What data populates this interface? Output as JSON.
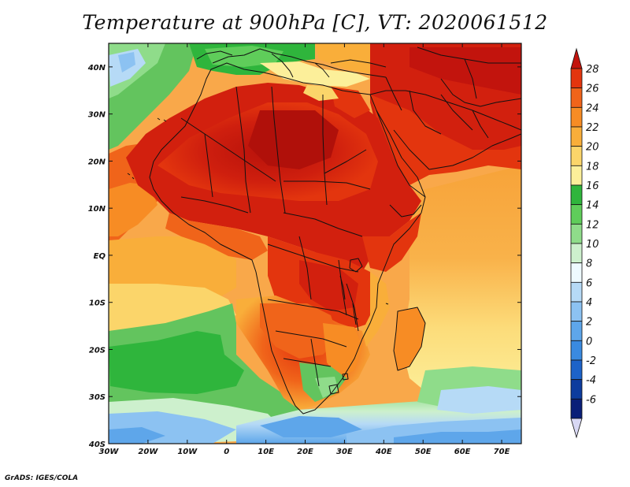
{
  "map": {
    "title": "Temperature at 900hPa [C], VT: 2020061512",
    "credit": "GrADS: IGES/COLA",
    "lon_ticks": [
      "30W",
      "20W",
      "10W",
      "0",
      "10E",
      "20E",
      "30E",
      "40E",
      "50E",
      "60E",
      "70E"
    ],
    "lat_ticks": [
      "40N",
      "30N",
      "20N",
      "10N",
      "EQ",
      "10S",
      "20S",
      "30S",
      "40S"
    ],
    "lon_range_deg": [
      -30,
      75
    ],
    "lat_range_deg": [
      -40,
      45
    ]
  },
  "colorbar": {
    "labels": [
      "28",
      "26",
      "24",
      "22",
      "20",
      "18",
      "16",
      "14",
      "12",
      "10",
      "8",
      "6",
      "4",
      "2",
      "0",
      "-2",
      "-4",
      "-6"
    ],
    "colors": [
      "#c2140d",
      "#e3350e",
      "#f0641a",
      "#f78c24",
      "#f9ae3a",
      "#fbd56a",
      "#fcef9a",
      "#2fb53c",
      "#5fcd5a",
      "#8fdc8a",
      "#cdf0cd",
      "#eefaff",
      "#b6daf6",
      "#8cc2f2",
      "#5ea6ea",
      "#3a8ae0",
      "#1d63c9",
      "#0d3c9e",
      "#0a1f78",
      "#d8d8f4"
    ]
  },
  "palette": {
    "ocean_cool": "#63c45e",
    "ocean_warm": "#f9a84a",
    "land_hot": "#d2200e",
    "boundary": "#111111"
  }
}
